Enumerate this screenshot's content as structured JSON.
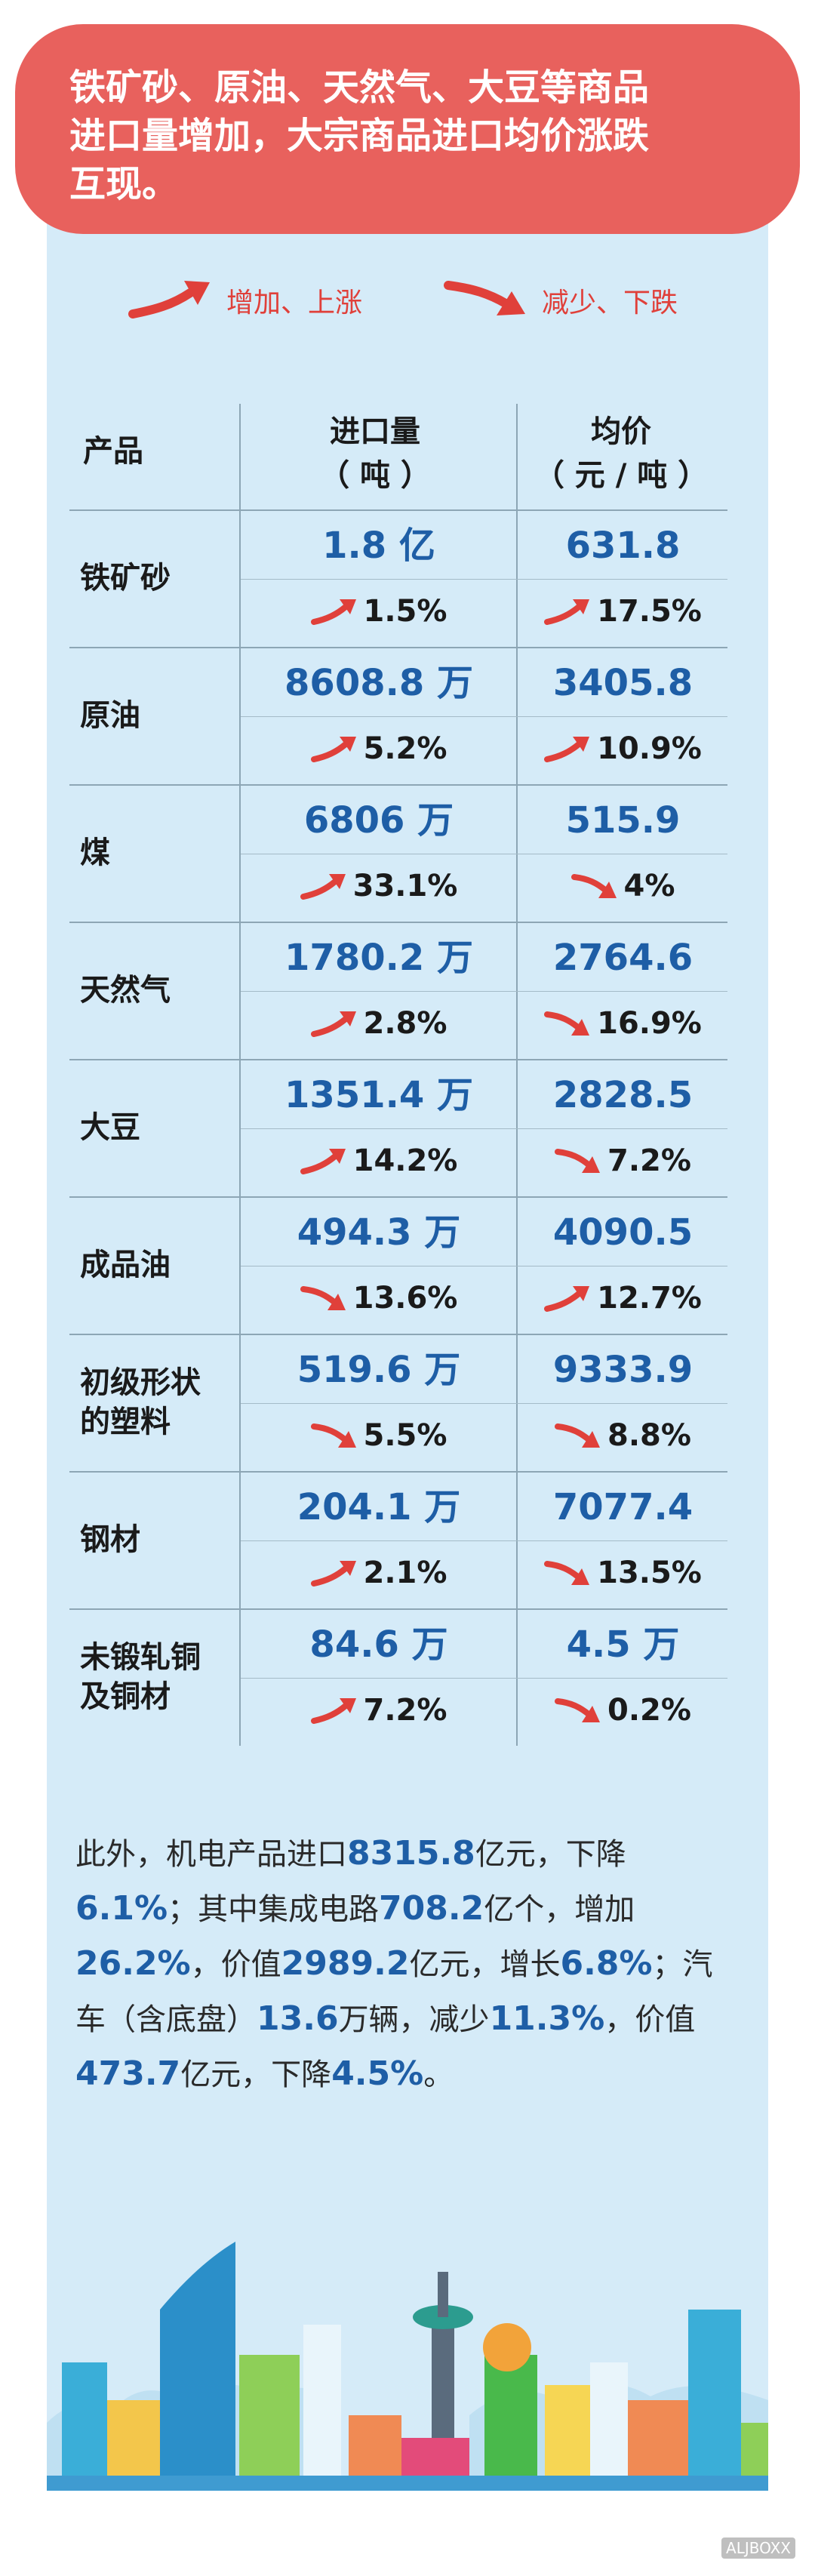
{
  "header": {
    "lines": [
      "铁矿砂、原油、天然气、大豆等商品",
      "进口量增加，大宗商品进口均价涨跌",
      "互现。"
    ]
  },
  "legend": {
    "up_label": "增加、上涨",
    "down_label": "减少、下跌"
  },
  "table": {
    "col1": "产品",
    "col2_line1": "进口量",
    "col2_line2": "（ 吨 ）",
    "col3_line1": "均价",
    "col3_line2": "（ 元 / 吨 ）",
    "rows": [
      {
        "name": [
          "铁矿砂"
        ],
        "qty": "1.8 亿",
        "qty_change": "1.5%",
        "qty_dir": "up",
        "price": "631.8",
        "price_change": "17.5%",
        "price_dir": "up"
      },
      {
        "name": [
          "原油"
        ],
        "qty": "8608.8 万",
        "qty_change": "5.2%",
        "qty_dir": "up",
        "price": "3405.8",
        "price_change": "10.9%",
        "price_dir": "up"
      },
      {
        "name": [
          "煤"
        ],
        "qty": "6806 万",
        "qty_change": "33.1%",
        "qty_dir": "up",
        "price": "515.9",
        "price_change": "4%",
        "price_dir": "down"
      },
      {
        "name": [
          "天然气"
        ],
        "qty": "1780.2 万",
        "qty_change": "2.8%",
        "qty_dir": "up",
        "price": "2764.6",
        "price_change": "16.9%",
        "price_dir": "down"
      },
      {
        "name": [
          "大豆"
        ],
        "qty": "1351.4 万",
        "qty_change": "14.2%",
        "qty_dir": "up",
        "price": "2828.5",
        "price_change": "7.2%",
        "price_dir": "down"
      },
      {
        "name": [
          "成品油"
        ],
        "qty": "494.3 万",
        "qty_change": "13.6%",
        "qty_dir": "down",
        "price": "4090.5",
        "price_change": "12.7%",
        "price_dir": "up"
      },
      {
        "name": [
          "初级形状",
          "的塑料"
        ],
        "qty": "519.6 万",
        "qty_change": "5.5%",
        "qty_dir": "down",
        "price": "9333.9",
        "price_change": "8.8%",
        "price_dir": "down"
      },
      {
        "name": [
          "钢材"
        ],
        "qty": "204.1 万",
        "qty_change": "2.1%",
        "qty_dir": "up",
        "price": "7077.4",
        "price_change": "13.5%",
        "price_dir": "down"
      },
      {
        "name": [
          "未锻轧铜",
          "及铜材"
        ],
        "qty": "84.6 万",
        "qty_change": "7.2%",
        "qty_dir": "up",
        "price": "4.5 万",
        "price_change": "0.2%",
        "price_dir": "down"
      }
    ]
  },
  "paragraph": [
    {
      "t": "此外，机电产品进口"
    },
    {
      "n": "8315.8"
    },
    {
      "t": "亿元，下降"
    },
    {
      "n": "6.1%"
    },
    {
      "t": "；其中集成电路"
    },
    {
      "n": "708.2"
    },
    {
      "t": "亿个，增加"
    },
    {
      "n": "26.2%"
    },
    {
      "t": "，价值"
    },
    {
      "n": "2989.2"
    },
    {
      "t": "亿元，增长"
    },
    {
      "n": "6.8%"
    },
    {
      "t": "；汽车（含底盘）"
    },
    {
      "n": "13.6"
    },
    {
      "t": "万辆，减少"
    },
    {
      "n": "11.3%"
    },
    {
      "t": "，价值"
    },
    {
      "n": "473.7"
    },
    {
      "t": "亿元，下降"
    },
    {
      "n": "4.5%"
    },
    {
      "t": "。"
    }
  ],
  "watermark": "ALJBOXX",
  "colors": {
    "header_bg": "#e8615d",
    "panel_bg": "#d5ebf8",
    "value_blue": "#1e5ea6",
    "arrow_red": "#e0403a"
  },
  "icons": {
    "up": "arrow-up-right-icon",
    "down": "arrow-down-right-icon"
  }
}
